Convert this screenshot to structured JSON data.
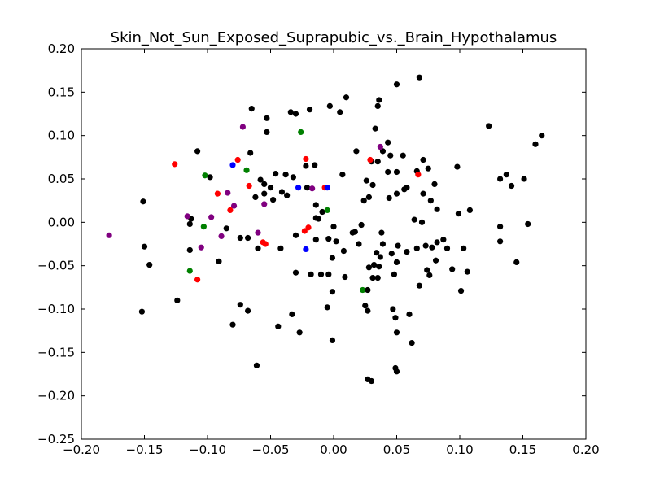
{
  "chart_data": {
    "type": "scatter",
    "title": "Skin_Not_Sun_Exposed_Suprapubic_vs._Brain_Hypothalamus",
    "xlabel": "",
    "ylabel": "",
    "xlim": [
      -0.2,
      0.2
    ],
    "ylim": [
      -0.25,
      0.2
    ],
    "x_ticks": [
      "−0.20",
      "−0.15",
      "−0.10",
      "−0.05",
      "0.00",
      "0.05",
      "0.10",
      "0.15",
      "0.20"
    ],
    "y_ticks": [
      "−0.25",
      "−0.20",
      "−0.15",
      "−0.10",
      "−0.05",
      "0.00",
      "0.05",
      "0.10",
      "0.15",
      "0.20"
    ],
    "grid": false,
    "colors": {
      "black": "#000000",
      "red": "#ff0000",
      "green": "#008000",
      "blue": "#0000ff",
      "purple": "#800080"
    },
    "series": [
      {
        "color": "black",
        "points": [
          [
            -0.065,
            0.131
          ],
          [
            -0.034,
            0.127
          ],
          [
            -0.03,
            0.125
          ],
          [
            -0.019,
            0.13
          ],
          [
            -0.003,
            0.134
          ],
          [
            0.005,
            0.127
          ],
          [
            0.01,
            0.144
          ],
          [
            0.036,
            0.141
          ],
          [
            0.035,
            0.134
          ],
          [
            0.05,
            0.159
          ],
          [
            0.068,
            0.167
          ],
          [
            0.123,
            0.111
          ],
          [
            0.165,
            0.1
          ],
          [
            0.16,
            0.09
          ],
          [
            -0.108,
            0.082
          ],
          [
            -0.098,
            0.052
          ],
          [
            -0.053,
            0.12
          ],
          [
            -0.053,
            0.104
          ],
          [
            0.033,
            0.108
          ],
          [
            0.039,
            0.082
          ],
          [
            0.043,
            0.092
          ],
          [
            0.045,
            0.077
          ],
          [
            0.055,
            0.077
          ],
          [
            0.018,
            0.082
          ],
          [
            0.03,
            0.07
          ],
          [
            0.035,
            0.07
          ],
          [
            0.043,
            0.058
          ],
          [
            0.05,
            0.058
          ],
          [
            0.071,
            0.072
          ],
          [
            0.075,
            0.062
          ],
          [
            0.098,
            0.064
          ],
          [
            0.08,
            0.044
          ],
          [
            0.132,
            0.05
          ],
          [
            0.137,
            0.055
          ],
          [
            0.141,
            0.042
          ],
          [
            0.151,
            0.05
          ],
          [
            -0.151,
            0.024
          ],
          [
            -0.15,
            -0.028
          ],
          [
            -0.146,
            -0.049
          ],
          [
            -0.152,
            -0.103
          ],
          [
            -0.124,
            -0.09
          ],
          [
            -0.114,
            -0.032
          ],
          [
            -0.113,
            0.004
          ],
          [
            -0.114,
            -0.002
          ],
          [
            -0.091,
            -0.045
          ],
          [
            -0.085,
            -0.007
          ],
          [
            -0.08,
            -0.118
          ],
          [
            -0.074,
            -0.095
          ],
          [
            -0.074,
            -0.018
          ],
          [
            -0.068,
            -0.018
          ],
          [
            -0.068,
            -0.102
          ],
          [
            -0.06,
            -0.03
          ],
          [
            -0.061,
            -0.165
          ],
          [
            -0.058,
            0.049
          ],
          [
            -0.055,
            0.044
          ],
          [
            -0.055,
            0.033
          ],
          [
            -0.062,
            0.029
          ],
          [
            -0.066,
            0.08
          ],
          [
            -0.05,
            0.04
          ],
          [
            -0.046,
            0.056
          ],
          [
            -0.048,
            0.026
          ],
          [
            -0.041,
            0.035
          ],
          [
            -0.038,
            0.055
          ],
          [
            -0.037,
            0.031
          ],
          [
            -0.032,
            0.052
          ],
          [
            -0.042,
            -0.03
          ],
          [
            -0.03,
            -0.015
          ],
          [
            -0.03,
            -0.058
          ],
          [
            -0.033,
            -0.106
          ],
          [
            -0.044,
            -0.12
          ],
          [
            -0.027,
            -0.127
          ],
          [
            -0.022,
            0.065
          ],
          [
            -0.021,
            0.04
          ],
          [
            -0.015,
            0.066
          ],
          [
            -0.014,
            0.005
          ],
          [
            -0.014,
            0.02
          ],
          [
            -0.012,
            0.004
          ],
          [
            -0.009,
            0.012
          ],
          [
            -0.014,
            -0.02
          ],
          [
            -0.018,
            -0.06
          ],
          [
            -0.01,
            -0.06
          ],
          [
            -0.004,
            -0.06
          ],
          [
            -0.005,
            -0.098
          ],
          [
            -0.001,
            -0.08
          ],
          [
            -0.001,
            -0.136
          ],
          [
            -0.001,
            -0.041
          ],
          [
            -0.004,
            -0.019
          ],
          [
            0.0,
            -0.005
          ],
          [
            0.002,
            -0.022
          ],
          [
            0.007,
            0.055
          ],
          [
            0.008,
            -0.033
          ],
          [
            0.009,
            -0.063
          ],
          [
            0.015,
            -0.012
          ],
          [
            0.017,
            -0.011
          ],
          [
            0.02,
            -0.025
          ],
          [
            0.022,
            -0.003
          ],
          [
            0.024,
            0.025
          ],
          [
            0.026,
            0.048
          ],
          [
            0.028,
            0.029
          ],
          [
            0.031,
            0.043
          ],
          [
            0.028,
            -0.052
          ],
          [
            0.031,
            -0.064
          ],
          [
            0.035,
            -0.064
          ],
          [
            0.032,
            -0.049
          ],
          [
            0.036,
            -0.051
          ],
          [
            0.034,
            -0.035
          ],
          [
            0.037,
            -0.04
          ],
          [
            0.038,
            -0.012
          ],
          [
            0.039,
            -0.025
          ],
          [
            0.044,
            0.028
          ],
          [
            0.046,
            -0.036
          ],
          [
            0.048,
            -0.06
          ],
          [
            0.05,
            -0.046
          ],
          [
            0.051,
            -0.027
          ],
          [
            0.047,
            -0.1
          ],
          [
            0.049,
            -0.11
          ],
          [
            0.05,
            -0.127
          ],
          [
            0.049,
            -0.168
          ],
          [
            0.05,
            -0.172
          ],
          [
            0.027,
            -0.102
          ],
          [
            0.025,
            -0.096
          ],
          [
            0.027,
            -0.181
          ],
          [
            0.03,
            -0.183
          ],
          [
            0.058,
            -0.034
          ],
          [
            0.06,
            -0.106
          ],
          [
            0.062,
            -0.139
          ],
          [
            0.064,
            0.003
          ],
          [
            0.066,
            -0.03
          ],
          [
            0.068,
            -0.073
          ],
          [
            0.07,
            0.0
          ],
          [
            0.073,
            -0.027
          ],
          [
            0.074,
            -0.055
          ],
          [
            0.076,
            -0.061
          ],
          [
            0.078,
            -0.029
          ],
          [
            0.081,
            -0.044
          ],
          [
            0.082,
            -0.023
          ],
          [
            0.077,
            0.025
          ],
          [
            0.082,
            0.015
          ],
          [
            0.087,
            -0.02
          ],
          [
            0.09,
            -0.03
          ],
          [
            0.094,
            -0.054
          ],
          [
            0.099,
            0.01
          ],
          [
            0.101,
            -0.079
          ],
          [
            0.103,
            -0.03
          ],
          [
            0.106,
            -0.057
          ],
          [
            0.108,
            0.014
          ],
          [
            0.132,
            -0.022
          ],
          [
            0.132,
            -0.005
          ],
          [
            0.145,
            -0.046
          ],
          [
            0.154,
            -0.002
          ],
          [
            0.05,
            0.033
          ],
          [
            0.056,
            0.038
          ],
          [
            0.058,
            0.04
          ],
          [
            0.071,
            0.033
          ],
          [
            0.066,
            0.059
          ],
          [
            0.027,
            -0.078
          ]
        ]
      },
      {
        "color": "red",
        "points": [
          [
            -0.126,
            0.067
          ],
          [
            -0.092,
            0.033
          ],
          [
            -0.082,
            0.014
          ],
          [
            -0.076,
            0.072
          ],
          [
            -0.067,
            0.042
          ],
          [
            -0.056,
            -0.023
          ],
          [
            -0.054,
            -0.025
          ],
          [
            -0.023,
            -0.01
          ],
          [
            -0.02,
            -0.006
          ],
          [
            -0.022,
            0.073
          ],
          [
            -0.007,
            0.04
          ],
          [
            0.029,
            0.072
          ],
          [
            0.067,
            0.055
          ],
          [
            -0.108,
            -0.066
          ]
        ]
      },
      {
        "color": "green",
        "points": [
          [
            -0.102,
            0.054
          ],
          [
            -0.069,
            0.06
          ],
          [
            -0.026,
            0.104
          ],
          [
            -0.005,
            0.014
          ],
          [
            -0.103,
            -0.005
          ],
          [
            -0.114,
            -0.056
          ],
          [
            0.023,
            -0.078
          ]
        ]
      },
      {
        "color": "blue",
        "points": [
          [
            -0.08,
            0.066
          ],
          [
            -0.028,
            0.04
          ],
          [
            -0.022,
            -0.031
          ],
          [
            -0.005,
            0.04
          ]
        ]
      },
      {
        "color": "purple",
        "points": [
          [
            -0.178,
            -0.015
          ],
          [
            -0.116,
            0.007
          ],
          [
            -0.105,
            -0.029
          ],
          [
            -0.097,
            0.006
          ],
          [
            -0.089,
            -0.016
          ],
          [
            -0.084,
            0.034
          ],
          [
            -0.079,
            0.019
          ],
          [
            -0.072,
            0.11
          ],
          [
            -0.06,
            -0.012
          ],
          [
            -0.055,
            0.021
          ],
          [
            -0.017,
            0.039
          ],
          [
            0.037,
            0.087
          ]
        ]
      }
    ]
  }
}
